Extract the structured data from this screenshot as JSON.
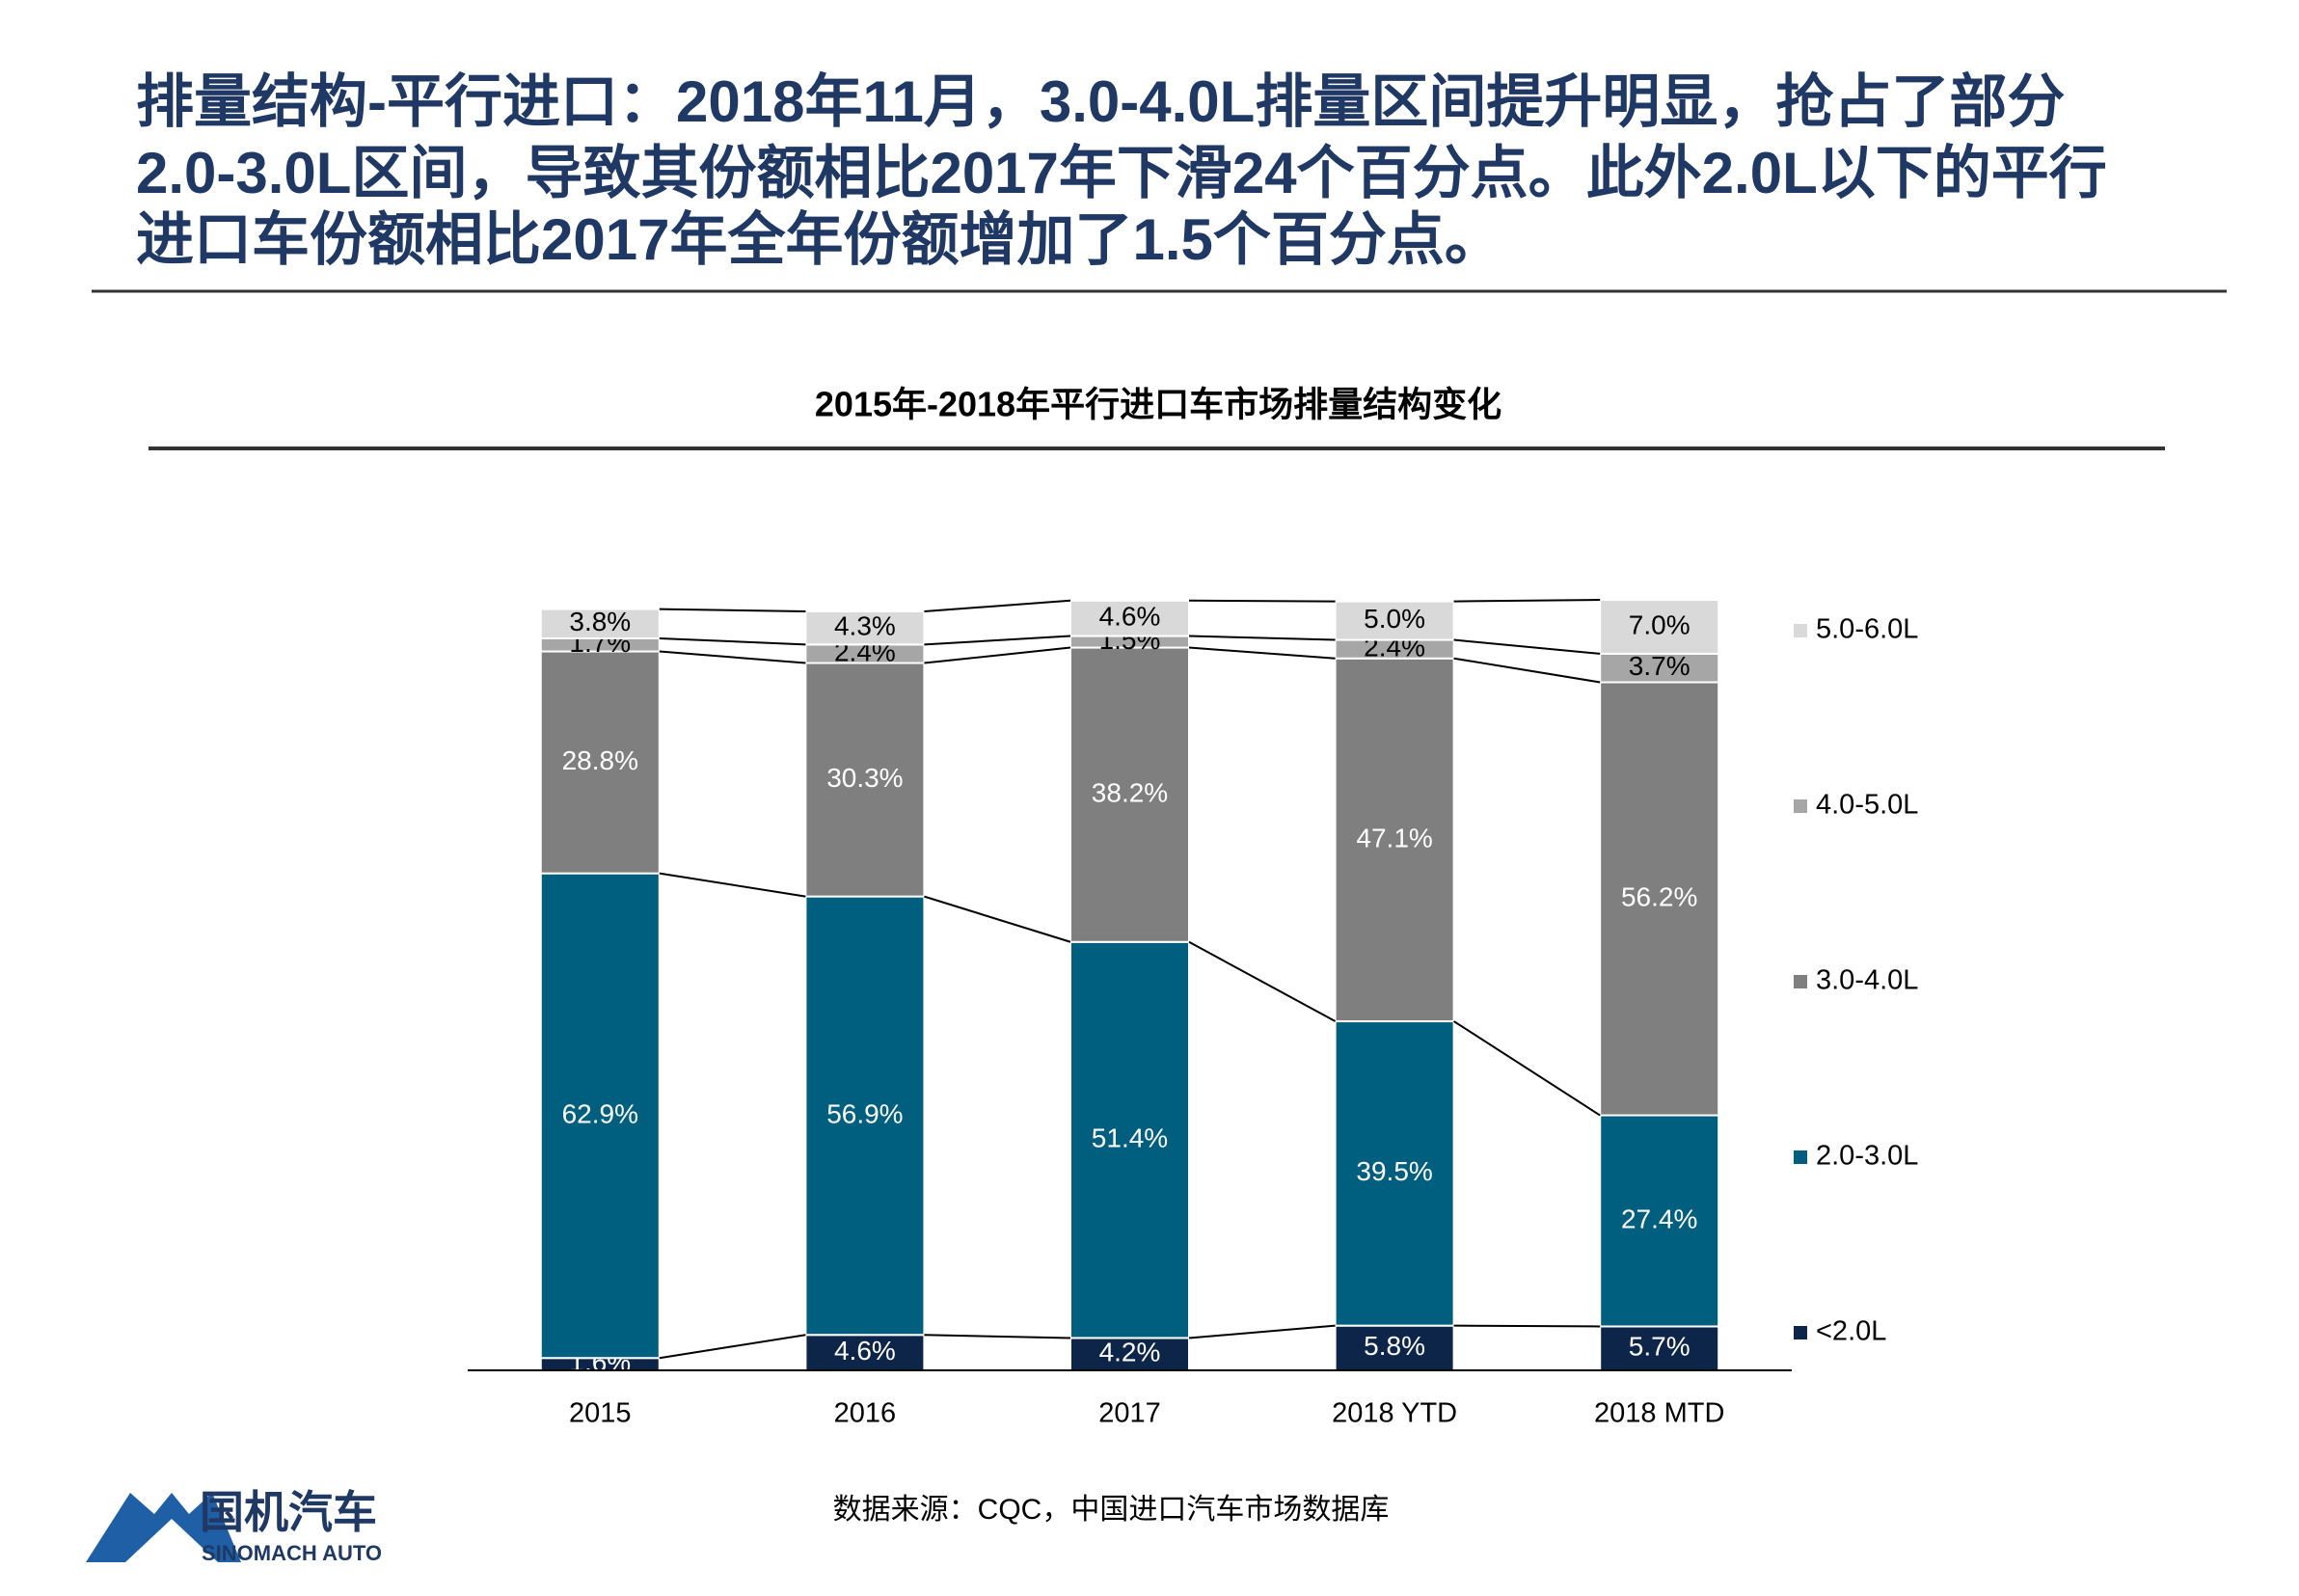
{
  "header": {
    "title_lines": [
      "排量结构-平行进口：2018年11月，3.0-4.0L排量区间提升明显，抢占了部分",
      "2.0-3.0L区间，导致其份额相比2017年下滑24个百分点。此外2.0L以下的平行",
      "进口车份额相比2017年全年份额增加了1.5个百分点。"
    ]
  },
  "chart_data": {
    "type": "stacked_bar",
    "title": "2015年-2018年平行进口车市场排量结构变化",
    "categories": [
      "2015",
      "2016",
      "2017",
      "2018 YTD",
      "2018 MTD"
    ],
    "ylim": [
      0,
      100
    ],
    "series": [
      {
        "name": "<2.0L",
        "color": "#0d2548",
        "label_color": "#ffffff",
        "values": [
          1.6,
          4.6,
          4.2,
          5.8,
          5.7
        ],
        "value_labels": [
          "1.6%",
          "4.6%",
          "4.2%",
          "5.8%",
          "5.7%"
        ]
      },
      {
        "name": "2.0-3.0L",
        "color": "#005f7f",
        "label_color": "#ffffff",
        "values": [
          62.9,
          56.9,
          51.4,
          39.5,
          27.4
        ],
        "value_labels": [
          "62.9%",
          "56.9%",
          "51.4%",
          "39.5%",
          "27.4%"
        ]
      },
      {
        "name": "3.0-4.0L",
        "color": "#7f7f7f",
        "label_color": "#ffffff",
        "values": [
          28.8,
          30.3,
          38.2,
          47.1,
          56.2
        ],
        "value_labels": [
          "28.8%",
          "30.3%",
          "38.2%",
          "47.1%",
          "56.2%"
        ]
      },
      {
        "name": "4.0-5.0L",
        "color": "#a6a6a6",
        "label_color": "#000000",
        "values": [
          1.7,
          2.4,
          1.5,
          2.4,
          3.7
        ],
        "value_labels": [
          "1.7%",
          "2.4%",
          "1.5%",
          "2.4%",
          "3.7%"
        ]
      },
      {
        "name": "5.0-6.0L",
        "color": "#d9d9d9",
        "label_color": "#000000",
        "values": [
          3.8,
          4.3,
          4.6,
          5.0,
          7.0
        ],
        "value_labels": [
          "3.8%",
          "4.3%",
          "4.6%",
          "5.0%",
          "7.0%"
        ]
      }
    ],
    "legend": "right",
    "source": "数据来源：CQC，中国进口汽车市场数据库"
  },
  "logo": {
    "name_cn": "国机汽车",
    "name_en": "SINOMACH AUTO"
  }
}
